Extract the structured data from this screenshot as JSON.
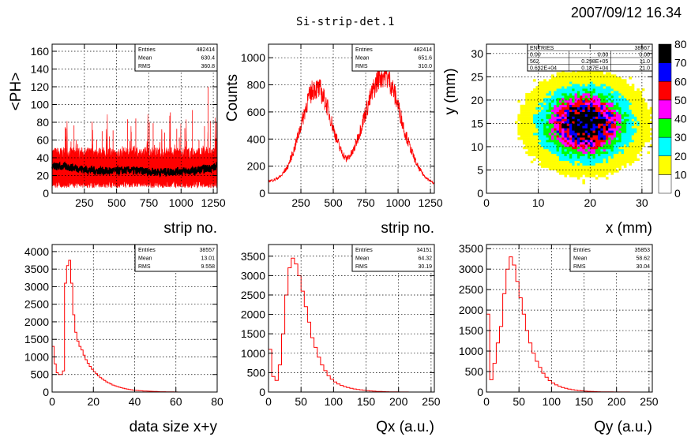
{
  "header": {
    "title": "Si-strip-det.1",
    "datetime": "2007/09/12   16.34"
  },
  "colors": {
    "hist": "#ff0000",
    "profile": "#000000"
  },
  "chart_data": [
    {
      "id": "ph-vs-strip",
      "type": "line",
      "xlabel": "strip no.",
      "ylabel": "<PH>",
      "xlim": [
        0,
        1280
      ],
      "ylim": [
        0,
        168
      ],
      "xticks": [
        250,
        500,
        750,
        1000,
        1250
      ],
      "yticks": [
        0,
        20,
        40,
        60,
        80,
        100,
        120,
        140,
        160
      ],
      "grid": true,
      "legend": "top-right",
      "stats": [
        [
          "Entries",
          "482414"
        ],
        [
          "Mean",
          "630.4"
        ],
        [
          "RMS",
          "360.8"
        ]
      ],
      "series": [
        {
          "values_x": [
            0,
            100,
            200,
            300,
            400,
            500,
            600,
            700,
            800,
            900,
            1000,
            1100,
            1200,
            1280
          ],
          "values_y": [
            30,
            30,
            28,
            26,
            25,
            25,
            26,
            25,
            24,
            24,
            25,
            25,
            28,
            30
          ]
        },
        {
          "values_x": [
            0,
            1280
          ],
          "values_y": [
            45,
            45
          ]
        },
        {
          "values_x": [
            0,
            1280
          ],
          "values_y": [
            10,
            10
          ]
        }
      ]
    },
    {
      "id": "counts-vs-strip",
      "type": "line",
      "xlabel": "strip no.",
      "ylabel": "Counts",
      "xlim": [
        0,
        1280
      ],
      "ylim": [
        0,
        1100
      ],
      "xticks": [
        250,
        500,
        750,
        1000,
        1250
      ],
      "yticks": [
        0,
        200,
        400,
        600,
        800,
        1000
      ],
      "grid": true,
      "legend": "top-right",
      "stats": [
        [
          "Entries",
          "482414"
        ],
        [
          "Mean",
          "651.6"
        ],
        [
          "RMS",
          "310.0"
        ]
      ],
      "series": [
        {
          "x": [
            0,
            50,
            100,
            150,
            200,
            250,
            300,
            350,
            400,
            450,
            500,
            550,
            600,
            650,
            700,
            750,
            800,
            850,
            900,
            950,
            1000,
            1050,
            1100,
            1150,
            1200,
            1250,
            1280
          ],
          "y": [
            90,
            100,
            130,
            200,
            330,
            500,
            680,
            780,
            760,
            650,
            480,
            330,
            250,
            300,
            440,
            600,
            740,
            860,
            880,
            800,
            650,
            460,
            320,
            200,
            130,
            90,
            70
          ]
        }
      ]
    },
    {
      "id": "y-vs-x",
      "type": "heatmap",
      "xlabel": "x (mm)",
      "ylabel": "y (mm)",
      "xlim": [
        0,
        32
      ],
      "ylim": [
        0,
        32
      ],
      "xticks": [
        0,
        10,
        20,
        30
      ],
      "yticks": [
        0,
        5,
        10,
        15,
        20,
        25,
        30
      ],
      "grid": true,
      "legend": "right",
      "center": [
        19,
        15
      ],
      "sigma": [
        4.8,
        4.3
      ],
      "zticks": [
        0,
        10,
        20,
        30,
        40,
        50,
        60,
        70,
        80
      ],
      "palette": [
        "#ffffff",
        "#ffff00",
        "#00ffff",
        "#00ff00",
        "#ff00ff",
        "#ff0000",
        "#0000ff",
        "#000000"
      ],
      "stats_grid": [
        [
          "ENTRIES",
          "",
          "38567"
        ],
        [
          "0.00",
          "0.00",
          "0.00"
        ],
        [
          "562.",
          "0.298E+05",
          "11.0"
        ],
        [
          "0.632E+04",
          "0.187E+04",
          "21.0"
        ]
      ]
    },
    {
      "id": "data-size",
      "type": "bar",
      "xlabel": "data size x+y",
      "ylabel": "",
      "xlim": [
        0,
        80
      ],
      "ylim": [
        0,
        4200
      ],
      "xticks": [
        0,
        20,
        40,
        60,
        80
      ],
      "yticks": [
        0,
        500,
        1000,
        1500,
        2000,
        2500,
        3000,
        3500,
        4000
      ],
      "grid": true,
      "legend": "top-right",
      "stats": [
        [
          "Entries",
          "38557"
        ],
        [
          "Mean",
          "13.01"
        ],
        [
          "RMS",
          "9.558"
        ]
      ],
      "bin_edges_start": 0,
      "bin_width": 1,
      "values": [
        1300,
        800,
        550,
        500,
        500,
        600,
        3100,
        3600,
        3750,
        3100,
        2200,
        1700,
        1450,
        1300,
        1200,
        1050,
        920,
        820,
        730,
        650,
        580,
        520,
        460,
        410,
        370,
        330,
        290,
        260,
        230,
        200,
        180,
        160,
        140,
        125,
        110,
        95,
        85,
        75,
        65,
        55,
        50,
        45,
        40,
        35,
        30,
        28,
        25,
        22,
        20,
        18,
        15,
        12,
        10,
        9,
        8,
        7,
        6,
        5,
        4,
        3,
        2
      ]
    },
    {
      "id": "qx",
      "type": "bar",
      "xlabel": "Qx (a.u.)",
      "ylabel": "",
      "xlim": [
        0,
        255
      ],
      "ylim": [
        0,
        3800
      ],
      "xticks": [
        0,
        50,
        100,
        150,
        200,
        250
      ],
      "yticks": [
        0,
        500,
        1000,
        1500,
        2000,
        2500,
        3000,
        3500
      ],
      "grid": true,
      "legend": "top-right",
      "stats": [
        [
          "Entries",
          "34151"
        ],
        [
          "Mean",
          "64.32"
        ],
        [
          "RMS",
          "30.19"
        ]
      ],
      "bin_edges_start": 0,
      "bin_width": 5,
      "values": [
        1100,
        400,
        300,
        700,
        1500,
        2500,
        3200,
        3450,
        3300,
        3000,
        2600,
        2200,
        1800,
        1400,
        1150,
        900,
        700,
        550,
        420,
        330,
        260,
        210,
        170,
        140,
        115,
        95,
        80,
        65,
        55,
        45,
        35,
        28,
        22,
        17,
        14,
        11,
        9,
        7,
        5,
        4,
        3,
        2,
        2,
        1,
        1,
        1,
        0,
        0,
        0,
        0
      ]
    },
    {
      "id": "qy",
      "type": "bar",
      "xlabel": "Qy (a.u.)",
      "ylabel": "",
      "xlim": [
        0,
        255
      ],
      "ylim": [
        0,
        3600
      ],
      "xticks": [
        0,
        50,
        100,
        150,
        200,
        250
      ],
      "yticks": [
        0,
        500,
        1000,
        1500,
        2000,
        2500,
        3000,
        3500
      ],
      "grid": true,
      "legend": "top-right",
      "stats": [
        [
          "Entries",
          "35853"
        ],
        [
          "Mean",
          "58.62"
        ],
        [
          "RMS",
          "30.04"
        ]
      ],
      "bin_edges_start": 0,
      "bin_width": 5,
      "values": [
        1900,
        300,
        700,
        1200,
        1600,
        2400,
        3000,
        3300,
        3100,
        2700,
        2300,
        1900,
        1500,
        1200,
        950,
        750,
        600,
        460,
        360,
        280,
        220,
        175,
        140,
        110,
        90,
        72,
        58,
        46,
        36,
        28,
        22,
        17,
        13,
        10,
        8,
        6,
        5,
        4,
        3,
        2,
        2,
        1,
        1,
        1,
        0,
        0,
        0,
        0,
        0,
        0
      ]
    }
  ]
}
